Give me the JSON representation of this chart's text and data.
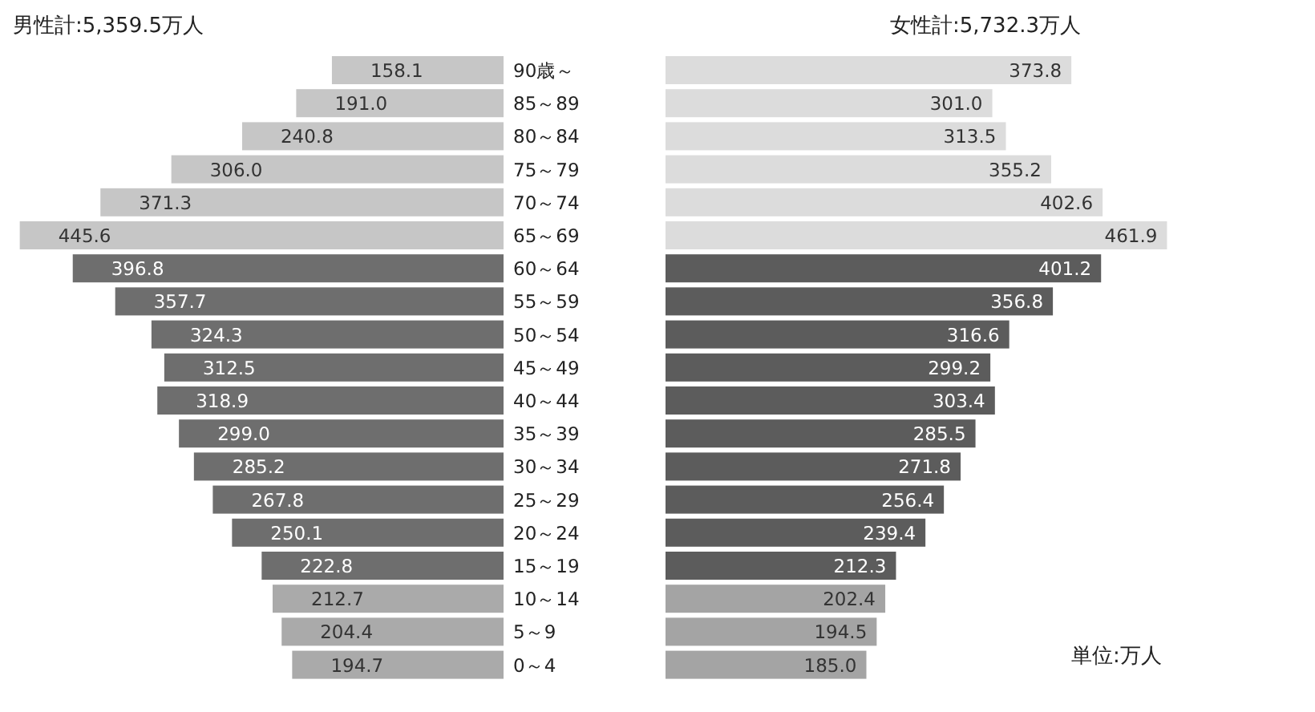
{
  "chart_data": [
    {
      "type": "bar",
      "orientation": "horizontal",
      "title": "男性計:5,359.5万人",
      "categories": [
        "90歳～",
        "85～89",
        "80～84",
        "75～79",
        "70～74",
        "65～69",
        "60～64",
        "55～59",
        "50～54",
        "45～49",
        "40～44",
        "35～39",
        "30～34",
        "25～29",
        "20～24",
        "15～19",
        "10～14",
        "5～9",
        "0～4"
      ],
      "values": [
        158.1,
        191.0,
        240.8,
        306.0,
        371.3,
        445.6,
        396.8,
        357.7,
        324.3,
        312.5,
        318.9,
        299.0,
        285.2,
        267.8,
        250.1,
        222.8,
        212.7,
        204.4,
        194.7
      ],
      "value_labels": [
        "158.1",
        "191.0",
        "240.8",
        "306.0",
        "371.3",
        "445.6",
        "396.8",
        "357.7",
        "324.3",
        "312.5",
        "318.9",
        "299.0",
        "285.2",
        "267.8",
        "250.1",
        "222.8",
        "212.7",
        "204.4",
        "194.7"
      ],
      "colors": [
        "#c6c6c6",
        "#c6c6c6",
        "#c6c6c6",
        "#c6c6c6",
        "#c6c6c6",
        "#c6c6c6",
        "#6e6e6e",
        "#6e6e6e",
        "#6e6e6e",
        "#6e6e6e",
        "#6e6e6e",
        "#6e6e6e",
        "#6e6e6e",
        "#6e6e6e",
        "#6e6e6e",
        "#6e6e6e",
        "#aaaaaa",
        "#aaaaaa",
        "#aaaaaa"
      ]
    },
    {
      "type": "bar",
      "orientation": "horizontal",
      "title": "女性計:5,732.3万人",
      "categories": [
        null,
        null,
        null,
        null,
        null,
        null,
        null,
        null,
        null,
        null,
        null,
        null,
        null,
        null,
        null,
        null,
        null,
        null,
        null
      ],
      "values": [
        373.8,
        301.0,
        313.5,
        355.2,
        402.6,
        461.9,
        401.2,
        356.8,
        316.6,
        299.2,
        303.4,
        285.5,
        271.8,
        256.4,
        239.4,
        212.3,
        202.4,
        194.5,
        185.0
      ],
      "value_labels": [
        "373.8",
        "301.0",
        "313.5",
        "355.2",
        "402.6",
        "461.9",
        "401.2",
        "356.8",
        "316.6",
        "299.2",
        "303.4",
        "285.5",
        "271.8",
        "256.4",
        "239.4",
        "212.3",
        "202.4",
        "194.5",
        "185.0"
      ],
      "colors": [
        "#dcdcdc",
        "#dcdcdc",
        "#dcdcdc",
        "#dcdcdc",
        "#dcdcdc",
        "#dcdcdc",
        "#5c5c5c",
        "#5c5c5c",
        "#5c5c5c",
        "#5c5c5c",
        "#5c5c5c",
        "#5c5c5c",
        "#5c5c5c",
        "#5c5c5c",
        "#5c5c5c",
        "#5c5c5c",
        "#a4a4a4",
        "#a4a4a4",
        "#a4a4a4"
      ],
      "annotations": [
        "単位:万人"
      ]
    }
  ]
}
